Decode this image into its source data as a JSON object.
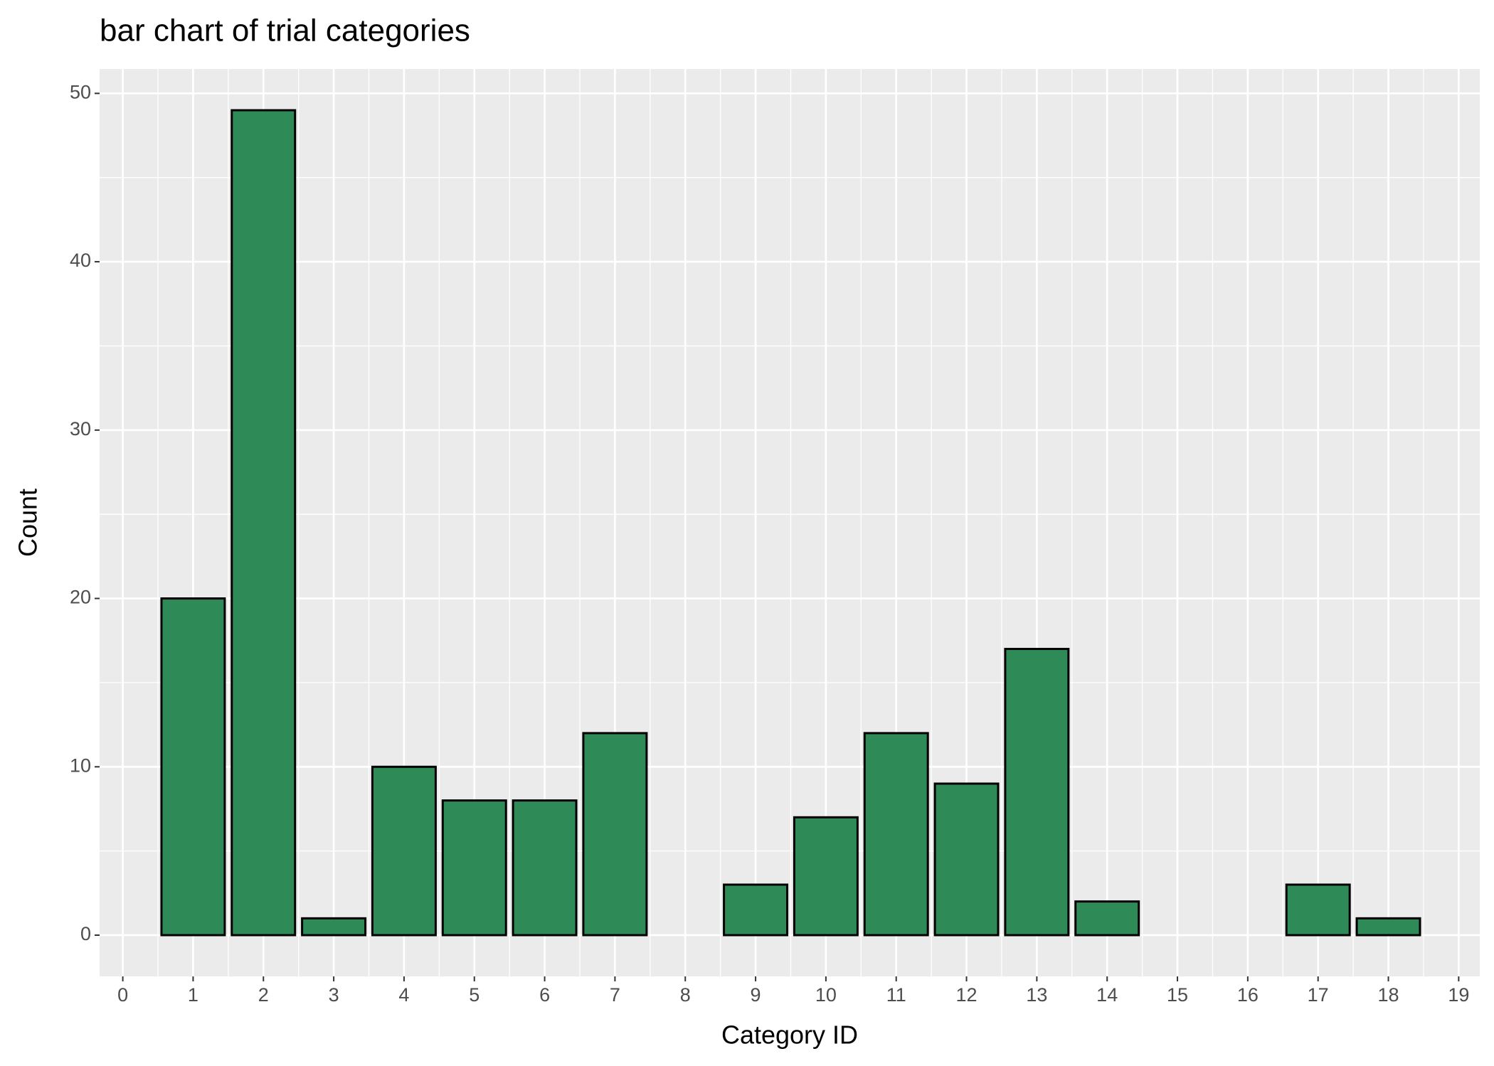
{
  "chart_data": {
    "type": "bar",
    "title": "bar chart of trial categories",
    "x_label": "Category ID",
    "y_label": "Count",
    "x": [
      1,
      2,
      3,
      4,
      5,
      6,
      7,
      9,
      10,
      11,
      12,
      13,
      14,
      17,
      18
    ],
    "values": [
      20,
      49,
      1,
      10,
      8,
      8,
      12,
      3,
      7,
      12,
      9,
      17,
      2,
      3,
      1
    ],
    "color": "#2e8b57",
    "xlim": [
      -0.33,
      19.3
    ],
    "ylim": [
      -2.45,
      51.45
    ],
    "xticks": [
      0,
      1,
      2,
      3,
      4,
      5,
      6,
      7,
      8,
      9,
      10,
      11,
      12,
      13,
      14,
      15,
      16,
      17,
      18,
      19
    ],
    "yticks": [
      0,
      10,
      20,
      30,
      40,
      50
    ],
    "grid": true
  }
}
